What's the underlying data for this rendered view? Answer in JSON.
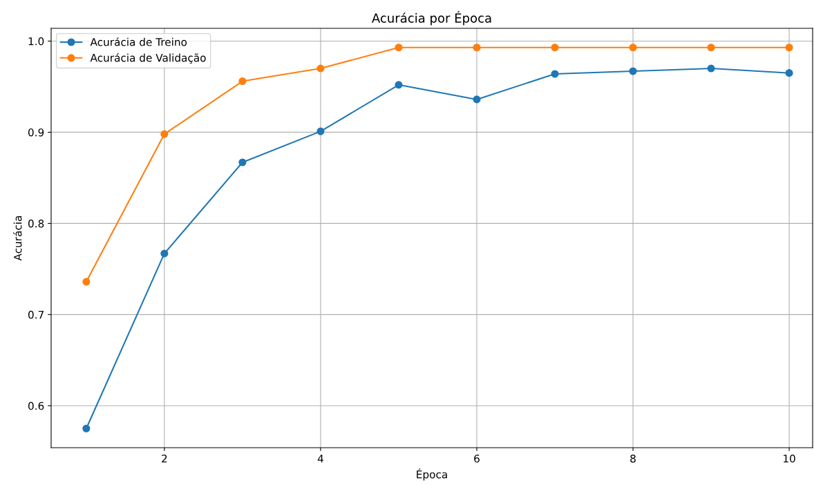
{
  "chart_data": {
    "type": "line",
    "title": "Acurácia por Época",
    "xlabel": "Época",
    "ylabel": "Acurácia",
    "x": [
      1,
      2,
      3,
      4,
      5,
      6,
      7,
      8,
      9,
      10
    ],
    "series": [
      {
        "name": "Acurácia de Treino",
        "color": "#1f77b4",
        "values": [
          0.575,
          0.767,
          0.867,
          0.901,
          0.952,
          0.936,
          0.964,
          0.967,
          0.97,
          0.965
        ]
      },
      {
        "name": "Acurácia de Validação",
        "color": "#ff7f0e",
        "values": [
          0.736,
          0.898,
          0.956,
          0.97,
          0.993,
          0.993,
          0.993,
          0.993,
          0.993,
          0.993
        ]
      }
    ],
    "xlim": [
      0.55,
      10.3
    ],
    "xticks": [
      2,
      4,
      6,
      8,
      10
    ],
    "ylim": [
      0.554,
      1.014
    ],
    "yticks": [
      0.6,
      0.7,
      0.8,
      0.9,
      {
        "value": 1,
        "label": "1.0"
      }
    ],
    "grid": true,
    "legend": "top left",
    "marker": "circle",
    "line_style": "solid"
  }
}
